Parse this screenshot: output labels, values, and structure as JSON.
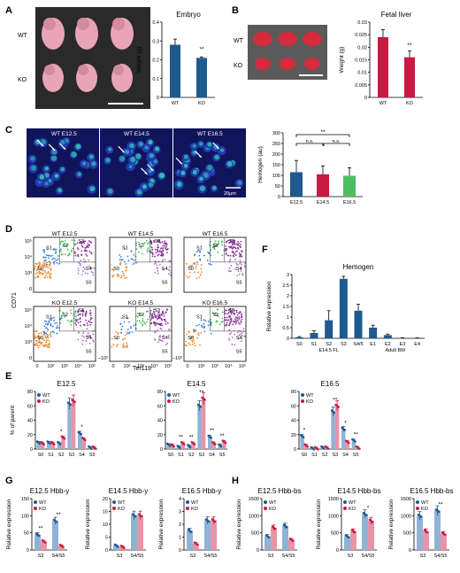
{
  "panels": {
    "A": {
      "letter": "A",
      "wt_label": "WT",
      "ko_label": "KO"
    },
    "B": {
      "letter": "B",
      "wt_label": "WT",
      "ko_label": "KO"
    },
    "C": {
      "letter": "C",
      "img_labels": [
        "WT E12.5",
        "WT E14.5",
        "WT E16.5"
      ],
      "scale": "20μm"
    },
    "D": {
      "letter": "D",
      "top_labels": [
        "WT E12.5",
        "WT E14.5",
        "WT E16.5"
      ],
      "bottom_labels": [
        "KO E12.5",
        "KO E14.5",
        "KO E16.5"
      ],
      "ylabel": "CD71",
      "xlabel": "Ter119",
      "gates": [
        "S0",
        "S1",
        "S2",
        "S3",
        "S4",
        "S5"
      ],
      "ticks_x": [
        "0",
        "10²",
        "10³",
        "10⁴",
        "10⁵"
      ],
      "ticks_y": [
        "10⁵",
        "10⁴",
        "10³",
        "0"
      ],
      "tick_neg": "−10²"
    },
    "E": {
      "letter": "E"
    },
    "F": {
      "letter": "F"
    },
    "G": {
      "letter": "G"
    },
    "H": {
      "letter": "H"
    }
  },
  "colors": {
    "wt": "#1f5a8f",
    "ko": "#c81a42",
    "c3": "#4cbe5f",
    "wtlight": "#8eb3d6",
    "kolight": "#e894a8"
  },
  "chart_data": [
    {
      "id": "A",
      "type": "bar",
      "title": "Embryo",
      "categories": [
        "WT",
        "KO"
      ],
      "values": [
        0.28,
        0.21
      ],
      "errors": [
        0.03,
        0.005
      ],
      "ylabel": "Weight (g)",
      "ylim": [
        0,
        0.4
      ],
      "yticks": [
        "0",
        "0.1",
        "0.2",
        "0.3",
        "0.4"
      ],
      "sig": "**"
    },
    {
      "id": "B",
      "type": "bar",
      "title": "Fetal liver",
      "categories": [
        "WT",
        "KO"
      ],
      "values": [
        0.024,
        0.016
      ],
      "errors": [
        0.003,
        0.0025
      ],
      "ylabel": "Weight (g)",
      "ylim": [
        0,
        0.03
      ],
      "yticks": [
        "0",
        "0.005",
        "0.01",
        "0.015",
        "0.02",
        "0.025",
        "0.03"
      ],
      "sig": "**"
    },
    {
      "id": "C",
      "type": "bar",
      "categories": [
        "E12.5",
        "E14.5",
        "E16.5"
      ],
      "values": [
        115,
        105,
        98
      ],
      "errors": [
        55,
        40,
        38
      ],
      "ylabel": "Hemogen (au)",
      "ylim": [
        0,
        300
      ],
      "yticks": [
        "0",
        "50",
        "100",
        "150",
        "200",
        "250",
        "300"
      ],
      "sig": [
        "n.s.",
        "n.s.",
        "**"
      ]
    },
    {
      "id": "F",
      "type": "bar",
      "title": "Hemogen",
      "categories": [
        "S0",
        "S1",
        "S2",
        "S3",
        "S4/5",
        "E1",
        "E2",
        "E3",
        "E4"
      ],
      "values": [
        0.05,
        0.25,
        0.85,
        2.8,
        1.3,
        0.5,
        0.15,
        0.02,
        0.01
      ],
      "errors": [
        0.03,
        0.1,
        0.45,
        0.12,
        0.3,
        0.12,
        0.05,
        0.01,
        0.01
      ],
      "ylabel": "Relative expression",
      "ylim": [
        0,
        3
      ],
      "yticks": [
        "0",
        "0.5",
        "1",
        "1.5",
        "2",
        "2.5",
        "3"
      ],
      "groups": [
        "E14.5 FL",
        "Adult BM"
      ]
    },
    {
      "id": "E1",
      "type": "bar",
      "title": "E12.5",
      "categories": [
        "S0",
        "S1",
        "S2",
        "S3",
        "S4",
        "S5"
      ],
      "series": [
        {
          "name": "WT",
          "values": [
            9,
            9,
            8,
            63,
            22,
            2
          ]
        },
        {
          "name": "KO",
          "values": [
            8,
            8,
            16,
            67,
            14,
            2
          ]
        }
      ],
      "ylabel": "% of parent",
      "ylim": [
        0,
        80
      ],
      "yticks": [
        "0",
        "20",
        "40",
        "60",
        "80"
      ],
      "sig": [
        "",
        "",
        "*",
        "",
        "*",
        ""
      ]
    },
    {
      "id": "E2",
      "type": "bar",
      "title": "E14.5",
      "categories": [
        "S0",
        "S1",
        "S2",
        "S3",
        "S4",
        "S5"
      ],
      "series": [
        {
          "name": "WT",
          "values": [
            6,
            3,
            4,
            60,
            17,
            5
          ]
        },
        {
          "name": "KO",
          "values": [
            5,
            8,
            8,
            70,
            8,
            10
          ]
        }
      ],
      "ylabel": "",
      "ylim": [
        0,
        80
      ],
      "yticks": [
        "0",
        "20",
        "40",
        "60",
        "80"
      ],
      "sig": [
        "",
        "**",
        "**",
        "**",
        "**",
        "**"
      ]
    },
    {
      "id": "E3",
      "type": "bar",
      "title": "E16.5",
      "categories": [
        "S0",
        "S1",
        "S2",
        "S3",
        "S4",
        "S5"
      ],
      "series": [
        {
          "name": "WT",
          "values": [
            18,
            1,
            2,
            52,
            28,
            12
          ]
        },
        {
          "name": "KO",
          "values": [
            5,
            1,
            2,
            60,
            10,
            2
          ]
        }
      ],
      "ylabel": "",
      "ylim": [
        0,
        80
      ],
      "yticks": [
        "0",
        "20",
        "40",
        "60",
        "80"
      ],
      "sig": [
        "*",
        "",
        "",
        "**",
        "*",
        "**"
      ]
    },
    {
      "id": "G1",
      "type": "bar",
      "title": "E12.5 Hbb-y",
      "categories": [
        "S3",
        "S4/S5"
      ],
      "series": [
        {
          "name": "WT",
          "values": [
            45,
            85
          ]
        },
        {
          "name": "KO",
          "values": [
            25,
            12
          ]
        }
      ],
      "ylabel": "Relative expression",
      "ylim": [
        0,
        150
      ],
      "yticks": [
        "0",
        "50",
        "100",
        "150"
      ],
      "sig": [
        "**",
        "**"
      ]
    },
    {
      "id": "G2",
      "type": "bar",
      "title": "E14.5 Hbb-y",
      "categories": [
        "S3",
        "S4/S5"
      ],
      "series": [
        {
          "name": "WT",
          "values": [
            1.7,
            13.5
          ]
        },
        {
          "name": "KO",
          "values": [
            1.2,
            13.5
          ]
        }
      ],
      "ylabel": "Relative expression",
      "ylim": [
        0,
        20
      ],
      "yticks": [
        "0",
        "5",
        "10",
        "15",
        "20"
      ],
      "sig": [
        "",
        ""
      ]
    },
    {
      "id": "G3",
      "type": "bar",
      "title": "E16.5 Hbb-y",
      "categories": [
        "S3",
        "S4/S5"
      ],
      "series": [
        {
          "name": "WT",
          "values": [
            1.5,
            2.3
          ]
        },
        {
          "name": "KO",
          "values": [
            0.5,
            2.3
          ]
        }
      ],
      "ylabel": "Relative expression",
      "ylim": [
        0,
        4
      ],
      "yticks": [
        "0",
        "1",
        "2",
        "3",
        "4"
      ],
      "sig": [
        "",
        ""
      ]
    },
    {
      "id": "H1",
      "type": "bar",
      "title": "E12.5 Hbb-bs",
      "categories": [
        "S3",
        "S4/S5"
      ],
      "series": [
        {
          "name": "WT",
          "values": [
            400,
            700
          ]
        },
        {
          "name": "KO",
          "values": [
            650,
            300
          ]
        }
      ],
      "ylabel": "Relative expression",
      "ylim": [
        0,
        1500
      ],
      "yticks": [
        "0",
        "500",
        "1000",
        "1500"
      ],
      "sig": [
        "",
        ""
      ]
    },
    {
      "id": "H2",
      "type": "bar",
      "title": "E14.5 Hbb-bs",
      "categories": [
        "S3",
        "S4/S5"
      ],
      "series": [
        {
          "name": "WT",
          "values": [
            400,
            1050
          ]
        },
        {
          "name": "KO",
          "values": [
            550,
            850
          ]
        }
      ],
      "ylabel": "Relative expression",
      "ylim": [
        0,
        1500
      ],
      "yticks": [
        "0",
        "500",
        "1000",
        "1500"
      ],
      "sig": [
        "",
        "*"
      ]
    },
    {
      "id": "H3",
      "type": "bar",
      "title": "E16.5 Hbb-bs",
      "categories": [
        "S3",
        "S4/S5"
      ],
      "series": [
        {
          "name": "WT",
          "values": [
            1000,
            1150
          ]
        },
        {
          "name": "KO",
          "values": [
            550,
            480
          ]
        }
      ],
      "ylabel": "Relative expression",
      "ylim": [
        0,
        1500
      ],
      "yticks": [
        "0",
        "500",
        "1000",
        "1500"
      ],
      "sig": [
        "",
        "**"
      ]
    }
  ]
}
